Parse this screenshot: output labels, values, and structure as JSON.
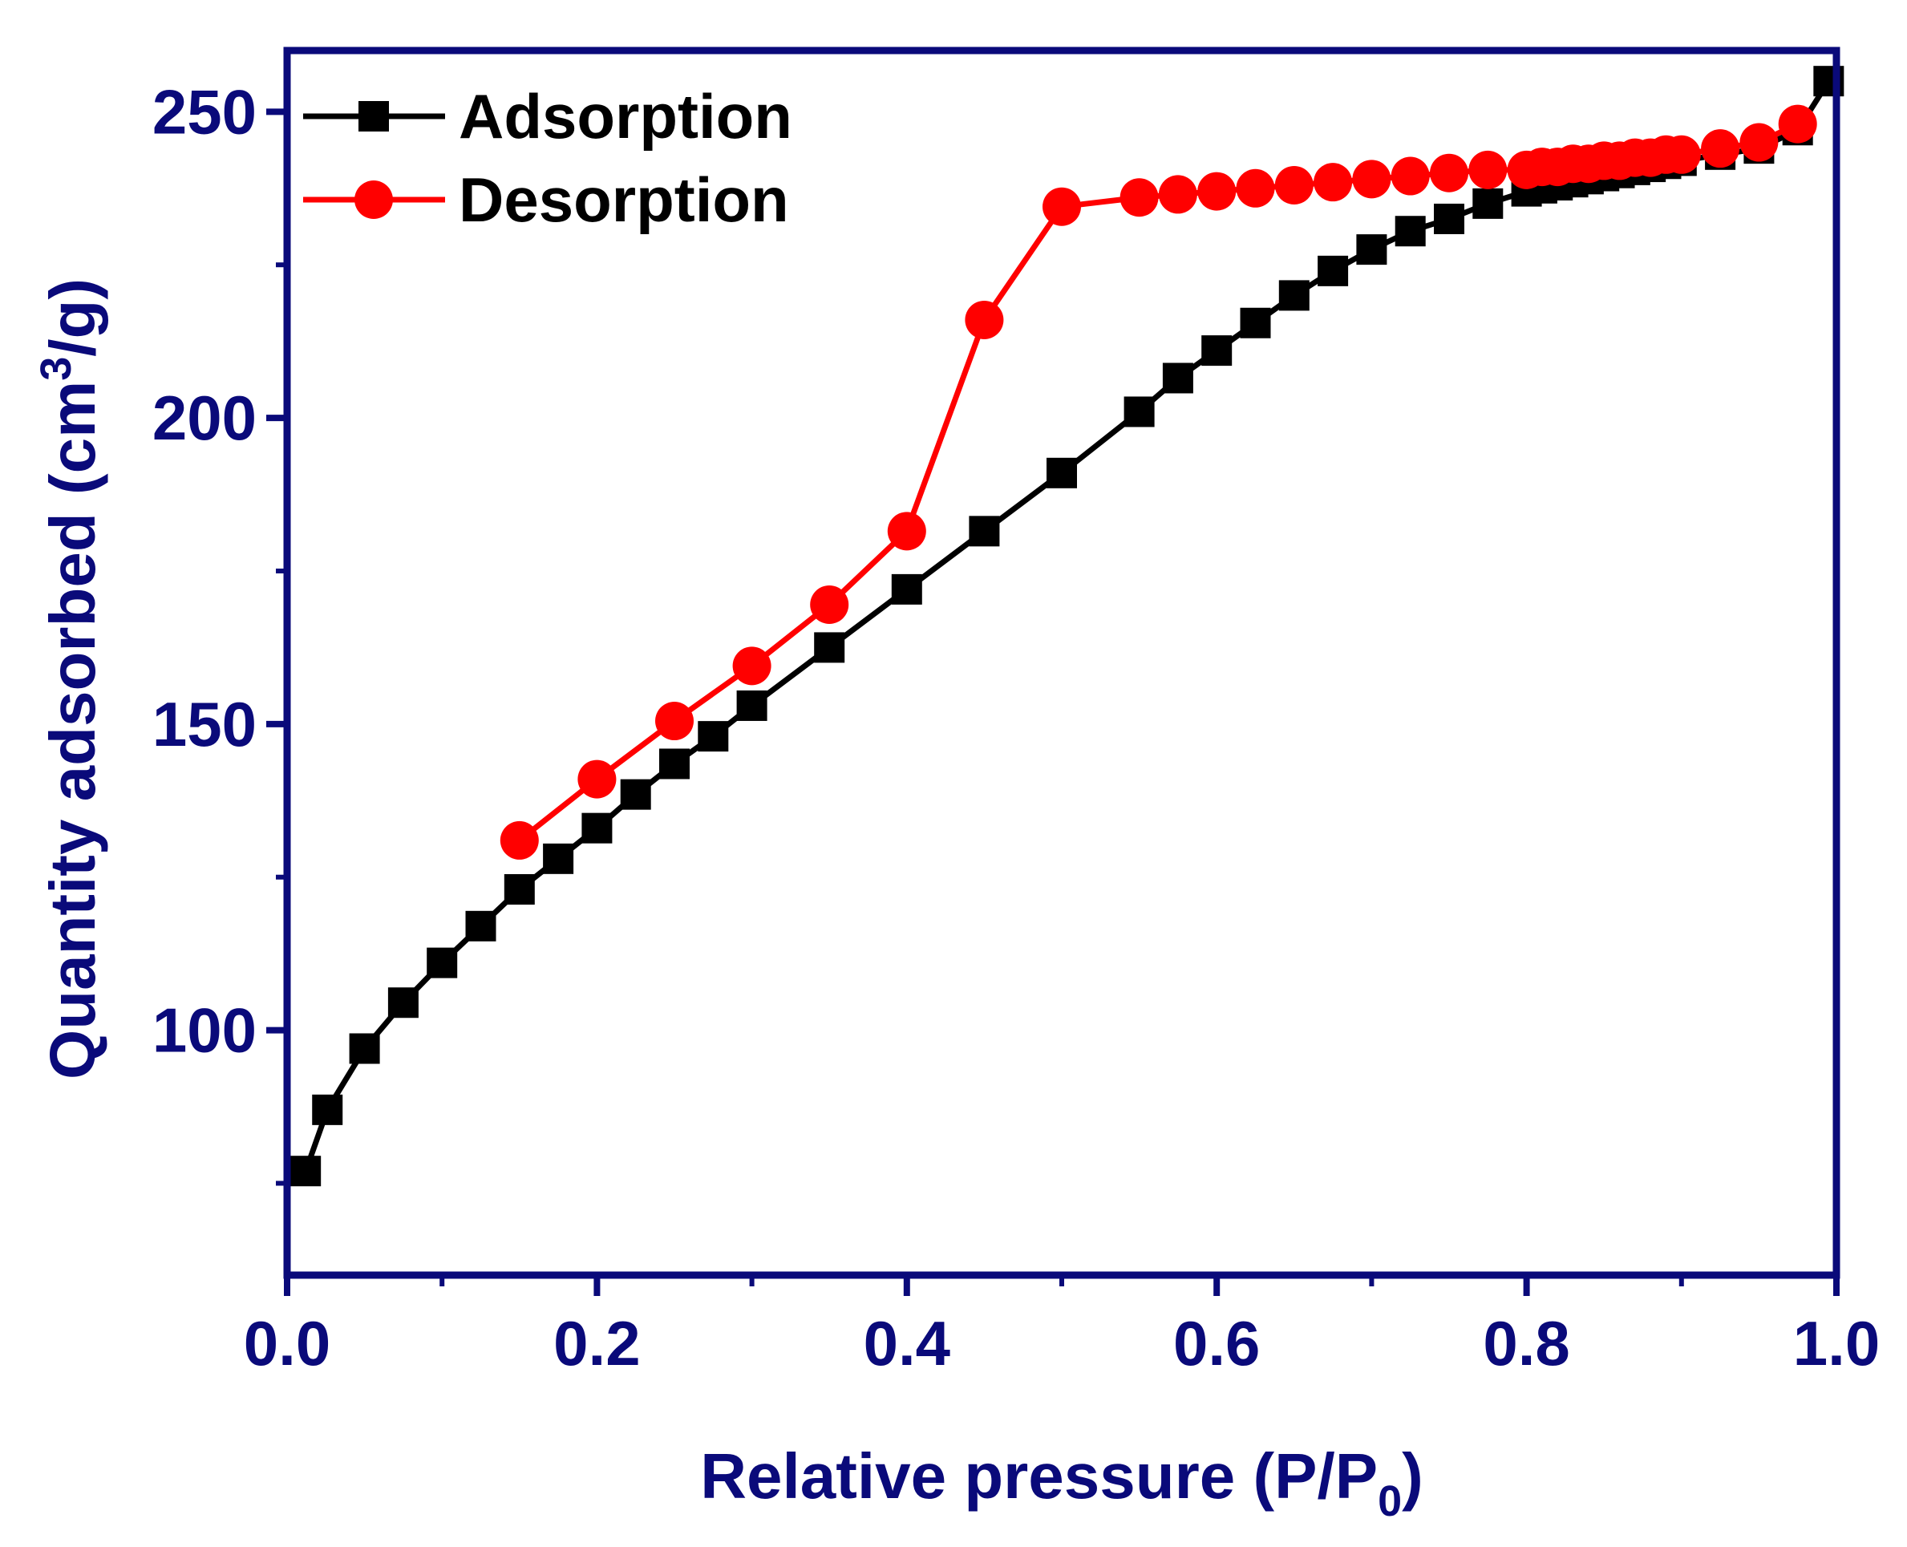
{
  "colors": {
    "axis": "#0a0a7a",
    "adsorption": "#000000",
    "desorption": "#ff0000"
  },
  "chart_data": {
    "type": "line",
    "xlabel_main": "Relative pressure (P/P",
    "xlabel_sub": "0",
    "xlabel_close": ")",
    "ylabel_main": "Quantity adsorbed (cm",
    "ylabel_sup": "3",
    "ylabel_close": "/g)",
    "xlim": [
      0.0,
      1.0
    ],
    "ylim": [
      60,
      260
    ],
    "xticks": [
      "0.0",
      "0.2",
      "0.4",
      "0.6",
      "0.8",
      "1.0"
    ],
    "yticks": [
      "100",
      "150",
      "200",
      "250"
    ],
    "grid": false,
    "legend_position": "top-left",
    "series": [
      {
        "name": "Adsorption",
        "marker": "square",
        "x": [
          0.012,
          0.026,
          0.05,
          0.075,
          0.1,
          0.125,
          0.15,
          0.175,
          0.2,
          0.225,
          0.25,
          0.275,
          0.3,
          0.35,
          0.4,
          0.45,
          0.5,
          0.55,
          0.575,
          0.6,
          0.625,
          0.65,
          0.675,
          0.7,
          0.725,
          0.75,
          0.775,
          0.8,
          0.81,
          0.82,
          0.83,
          0.84,
          0.85,
          0.86,
          0.87,
          0.88,
          0.89,
          0.9,
          0.925,
          0.95,
          0.975,
          0.995
        ],
        "y": [
          77,
          87,
          97,
          104.5,
          111,
          117,
          123,
          128,
          133,
          138.5,
          143.5,
          148,
          153,
          162.5,
          172,
          181.5,
          191,
          201,
          206.5,
          211,
          215.5,
          220,
          224,
          227.5,
          230.5,
          232.5,
          235,
          237,
          237.5,
          238,
          238.5,
          239,
          239.5,
          240,
          240.5,
          241,
          241.5,
          242,
          243,
          244,
          247,
          255
        ]
      },
      {
        "name": "Desorption",
        "marker": "circle",
        "x": [
          0.15,
          0.2,
          0.25,
          0.3,
          0.35,
          0.4,
          0.45,
          0.5,
          0.55,
          0.575,
          0.6,
          0.625,
          0.65,
          0.675,
          0.7,
          0.725,
          0.75,
          0.775,
          0.8,
          0.81,
          0.82,
          0.83,
          0.84,
          0.85,
          0.86,
          0.87,
          0.88,
          0.89,
          0.9,
          0.925,
          0.95,
          0.975
        ],
        "y": [
          131,
          141,
          150.5,
          159.5,
          169.5,
          181.5,
          216,
          234.5,
          236,
          236.5,
          237,
          237.5,
          238,
          238.5,
          239,
          239.5,
          240,
          240.5,
          240.5,
          241,
          241,
          241.5,
          241.5,
          242,
          242,
          242.5,
          242.5,
          243,
          243,
          244,
          245,
          248
        ]
      }
    ]
  }
}
